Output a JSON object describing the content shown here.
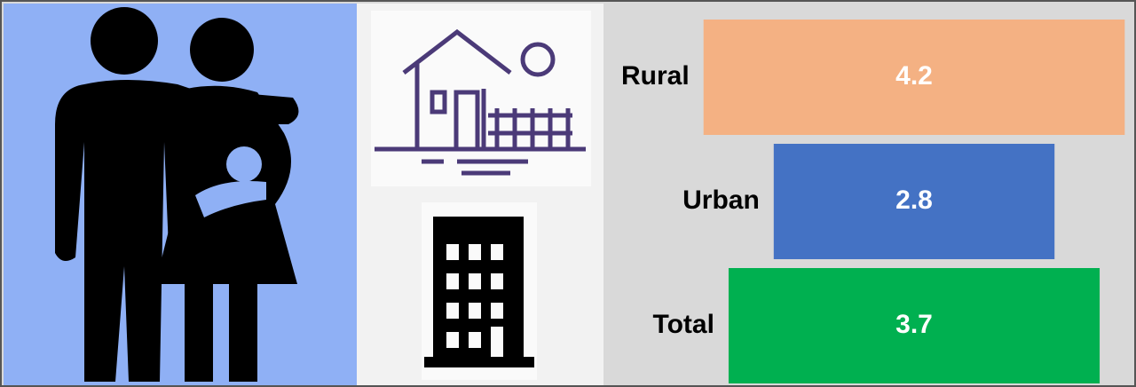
{
  "chart_data": {
    "type": "funnel",
    "categories": [
      "Rural",
      "Urban",
      "Total"
    ],
    "values": [
      4.2,
      2.8,
      3.7
    ],
    "colors": [
      "#f4b183",
      "#4472c4",
      "#00b050"
    ]
  }
}
